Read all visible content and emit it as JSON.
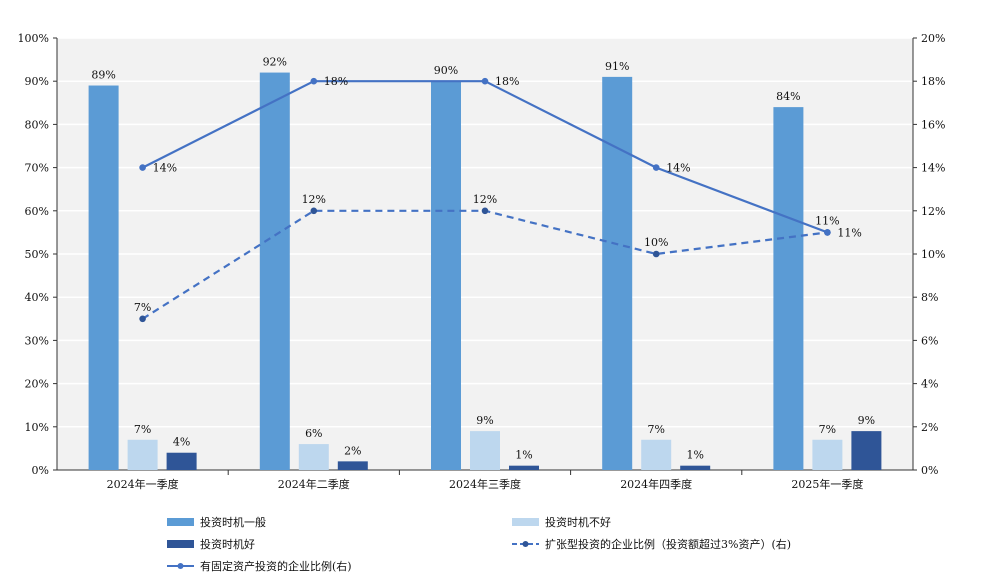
{
  "chart_data": {
    "type": "bar",
    "categories": [
      "2024年一季度",
      "2024年二季度",
      "2024年三季度",
      "2024年四季度",
      "2025年一季度"
    ],
    "series": [
      {
        "name": "投资时机一般",
        "kind": "bar",
        "axis": "left",
        "color": "#5b9bd5",
        "values": [
          89,
          92,
          90,
          91,
          84
        ]
      },
      {
        "name": "投资时机不好",
        "kind": "bar",
        "axis": "left",
        "color": "#bdd7ee",
        "values": [
          7,
          6,
          9,
          7,
          7
        ]
      },
      {
        "name": "投资时机好",
        "kind": "bar",
        "axis": "left",
        "color": "#2f5597",
        "values": [
          4,
          2,
          1,
          1,
          9
        ]
      },
      {
        "name": "扩张型投资的企业比例（投资额超过3%资产）(右)",
        "kind": "line",
        "dashed": true,
        "axis": "right",
        "color": "#4472c4",
        "values": [
          7,
          12,
          12,
          10,
          11
        ]
      },
      {
        "name": "有固定资产投资的企业比例(右)",
        "kind": "line",
        "dashed": false,
        "axis": "right",
        "color": "#4472c4",
        "values": [
          14,
          18,
          18,
          14,
          11
        ]
      }
    ],
    "y_left": {
      "min": 0,
      "max": 100,
      "step": 10,
      "unit": "%"
    },
    "y_right": {
      "min": 0,
      "max": 20,
      "step": 2,
      "unit": "%"
    },
    "grid": true,
    "legend_position": "bottom"
  }
}
